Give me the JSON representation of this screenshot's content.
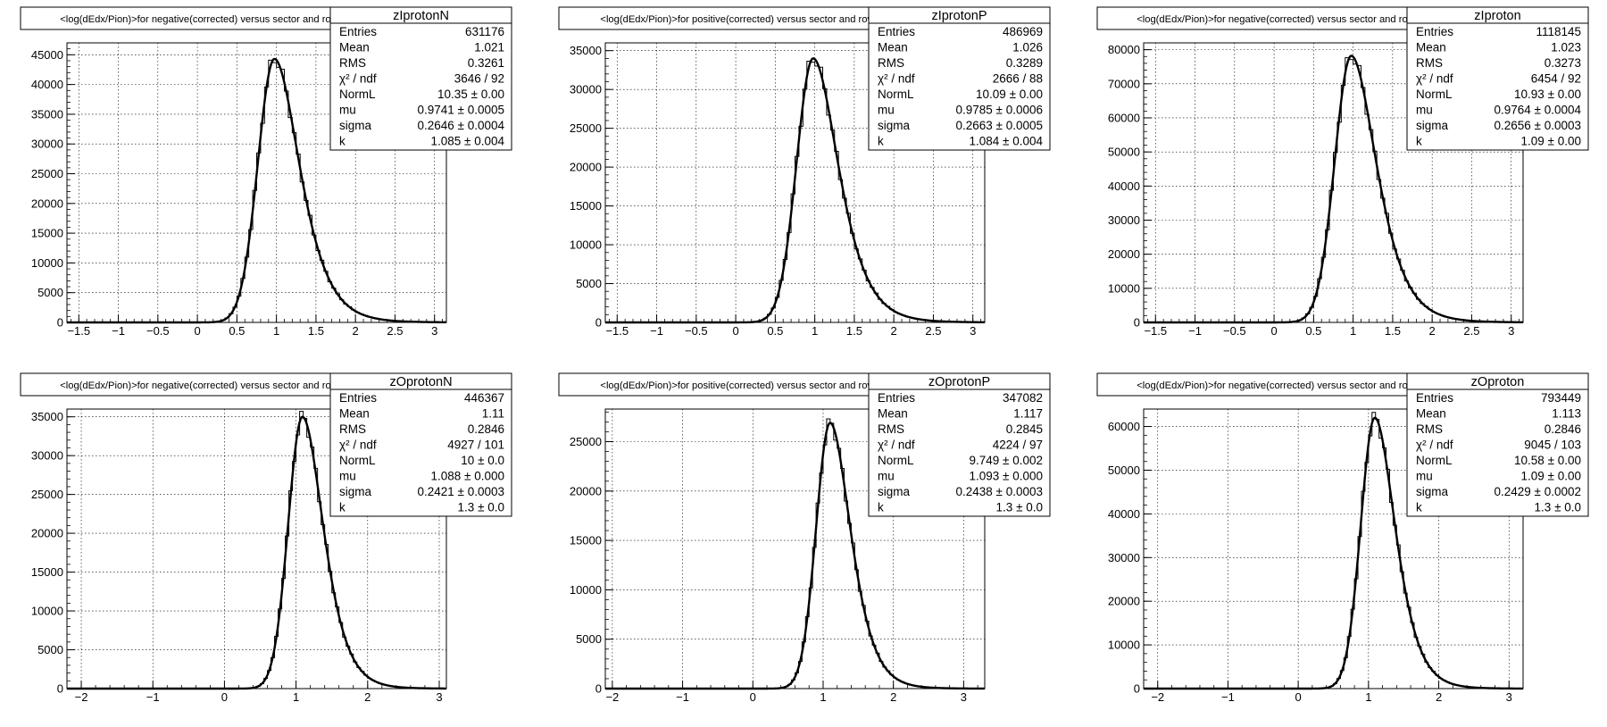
{
  "chart_data": [
    {
      "type": "histogram",
      "title": "<log(dEdx/Pion)>for negative(corrected) versus sector and row",
      "name": "zIprotonN",
      "x_ticks": [
        -1.5,
        -1,
        -0.5,
        0,
        0.5,
        1,
        1.5,
        2,
        2.5,
        3
      ],
      "xlim": [
        -1.65,
        3.15
      ],
      "y_ticks": [
        0,
        5000,
        10000,
        15000,
        20000,
        25000,
        30000,
        35000,
        40000,
        45000
      ],
      "ylim": [
        0,
        47000
      ],
      "peak": {
        "x": 0.975,
        "y": 44300,
        "sigma_left": 0.21,
        "sigma_right": 0.27
      },
      "stats": [
        {
          "label": "Entries",
          "value": "631176"
        },
        {
          "label": "Mean",
          "value": "1.021"
        },
        {
          "label": "RMS",
          "value": "0.3261"
        },
        {
          "label": "χ² / ndf",
          "value": "3646 / 92"
        },
        {
          "label": "NormL",
          "value": "10.35 ± 0.00"
        },
        {
          "label": "mu",
          "value": "0.9741 ± 0.0005"
        },
        {
          "label": "sigma",
          "value": "0.2646 ± 0.0004"
        },
        {
          "label": "k",
          "value": "1.085 ± 0.004"
        }
      ]
    },
    {
      "type": "histogram",
      "title": "<log(dEdx/Pion)>for positive(corrected) versus sector and row",
      "name": "zIprotonP",
      "x_ticks": [
        -1.5,
        -1,
        -0.5,
        0,
        0.5,
        1,
        1.5,
        2,
        2.5,
        3
      ],
      "xlim": [
        -1.65,
        3.15
      ],
      "y_ticks": [
        0,
        5000,
        10000,
        15000,
        20000,
        25000,
        30000,
        35000
      ],
      "ylim": [
        0,
        36000
      ],
      "peak": {
        "x": 0.98,
        "y": 34000,
        "sigma_left": 0.21,
        "sigma_right": 0.27
      },
      "stats": [
        {
          "label": "Entries",
          "value": "486969"
        },
        {
          "label": "Mean",
          "value": "1.026"
        },
        {
          "label": "RMS",
          "value": "0.3289"
        },
        {
          "label": "χ² / ndf",
          "value": "2666 / 88"
        },
        {
          "label": "NormL",
          "value": "10.09 ± 0.00"
        },
        {
          "label": "mu",
          "value": "0.9785 ± 0.0006"
        },
        {
          "label": "sigma",
          "value": "0.2663 ± 0.0005"
        },
        {
          "label": "k",
          "value": "1.084 ± 0.004"
        }
      ]
    },
    {
      "type": "histogram",
      "title": "<log(dEdx/Pion)>for negative(corrected) versus sector and row",
      "name": "zIproton",
      "x_ticks": [
        -1.5,
        -1,
        -0.5,
        0,
        0.5,
        1,
        1.5,
        2,
        2.5,
        3
      ],
      "xlim": [
        -1.65,
        3.15
      ],
      "y_ticks": [
        0,
        10000,
        20000,
        30000,
        40000,
        50000,
        60000,
        70000,
        80000
      ],
      "ylim": [
        0,
        82000
      ],
      "peak": {
        "x": 0.977,
        "y": 78200,
        "sigma_left": 0.21,
        "sigma_right": 0.27
      },
      "stats": [
        {
          "label": "Entries",
          "value": "1118145"
        },
        {
          "label": "Mean",
          "value": "1.023"
        },
        {
          "label": "RMS",
          "value": "0.3273"
        },
        {
          "label": "χ² / ndf",
          "value": "6454 / 92"
        },
        {
          "label": "NormL",
          "value": "10.93 ± 0.00"
        },
        {
          "label": "mu",
          "value": "0.9764 ± 0.0004"
        },
        {
          "label": "sigma",
          "value": "0.2656 ± 0.0003"
        },
        {
          "label": "k",
          "value": "1.09 ± 0.00"
        }
      ]
    },
    {
      "type": "histogram",
      "title": "<log(dEdx/Pion)>for negative(corrected) versus sector and row",
      "name": "zOprotonN",
      "x_ticks": [
        -2,
        -1,
        0,
        1,
        2,
        3
      ],
      "xlim": [
        -2.2,
        3.1
      ],
      "y_ticks": [
        0,
        5000,
        10000,
        15000,
        20000,
        25000,
        30000,
        35000
      ],
      "ylim": [
        0,
        36000
      ],
      "peak": {
        "x": 1.09,
        "y": 35000,
        "sigma_left": 0.2,
        "sigma_right": 0.25
      },
      "stats": [
        {
          "label": "Entries",
          "value": "446367"
        },
        {
          "label": "Mean",
          "value": "1.11"
        },
        {
          "label": "RMS",
          "value": "0.2846"
        },
        {
          "label": "χ² / ndf",
          "value": "4927 / 101"
        },
        {
          "label": "NormL",
          "value": "10 ± 0.0"
        },
        {
          "label": "mu",
          "value": "1.088 ± 0.000"
        },
        {
          "label": "sigma",
          "value": "0.2421 ± 0.0003"
        },
        {
          "label": "k",
          "value": "1.3 ± 0.0"
        }
      ]
    },
    {
      "type": "histogram",
      "title": "<log(dEdx/Pion)>for positive(corrected) versus sector and row",
      "name": "zOprotonP",
      "x_ticks": [
        -2,
        -1,
        0,
        1,
        2,
        3
      ],
      "xlim": [
        -2.1,
        3.3
      ],
      "y_ticks": [
        0,
        5000,
        10000,
        15000,
        20000,
        25000
      ],
      "ylim": [
        0,
        28300
      ],
      "peak": {
        "x": 1.1,
        "y": 26900,
        "sigma_left": 0.2,
        "sigma_right": 0.25
      },
      "stats": [
        {
          "label": "Entries",
          "value": "347082"
        },
        {
          "label": "Mean",
          "value": "1.117"
        },
        {
          "label": "RMS",
          "value": "0.2845"
        },
        {
          "label": "χ² / ndf",
          "value": "4224 / 97"
        },
        {
          "label": "NormL",
          "value": "9.749 ± 0.002"
        },
        {
          "label": "mu",
          "value": "1.093 ± 0.000"
        },
        {
          "label": "sigma",
          "value": "0.2438 ± 0.0003"
        },
        {
          "label": "k",
          "value": "1.3 ± 0.0"
        }
      ]
    },
    {
      "type": "histogram",
      "title": "<log(dEdx/Pion)>for negative(corrected) versus sector and row",
      "name": "zOproton",
      "x_ticks": [
        -2,
        -1,
        0,
        1,
        2,
        3
      ],
      "xlim": [
        -2.2,
        3.2
      ],
      "y_ticks": [
        0,
        10000,
        20000,
        30000,
        40000,
        50000,
        60000
      ],
      "ylim": [
        0,
        64000
      ],
      "peak": {
        "x": 1.09,
        "y": 62000,
        "sigma_left": 0.2,
        "sigma_right": 0.25
      },
      "stats": [
        {
          "label": "Entries",
          "value": "793449"
        },
        {
          "label": "Mean",
          "value": "1.113"
        },
        {
          "label": "RMS",
          "value": "0.2846"
        },
        {
          "label": "χ² / ndf",
          "value": "9045 / 103"
        },
        {
          "label": "NormL",
          "value": "10.58 ± 0.00"
        },
        {
          "label": "mu",
          "value": "1.09 ± 0.00"
        },
        {
          "label": "sigma",
          "value": "0.2429 ± 0.0002"
        },
        {
          "label": "k",
          "value": "1.3 ± 0.0"
        }
      ]
    }
  ]
}
